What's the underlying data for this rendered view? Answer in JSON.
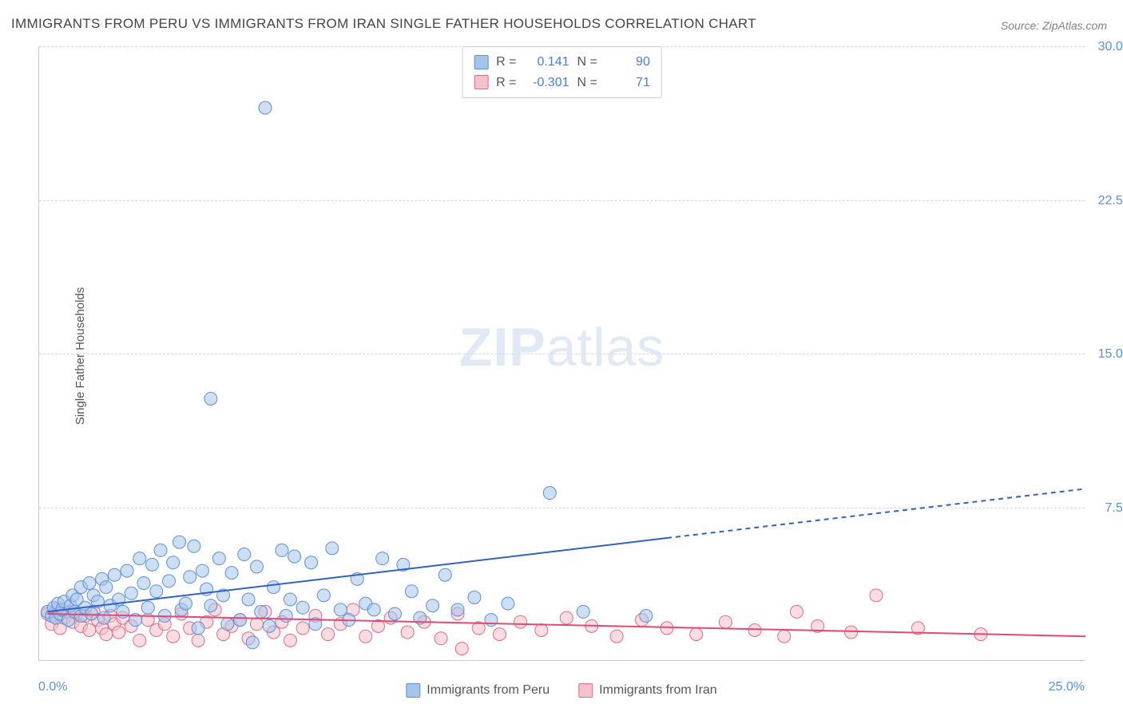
{
  "title": "IMMIGRANTS FROM PERU VS IMMIGRANTS FROM IRAN SINGLE FATHER HOUSEHOLDS CORRELATION CHART",
  "source": "Source: ZipAtlas.com",
  "watermark_a": "ZIP",
  "watermark_b": "atlas",
  "y_axis_title": "Single Father Households",
  "chart": {
    "type": "scatter",
    "background_color": "#ffffff",
    "grid_color": "#d8d8d8",
    "axis_color": "#c9c9c9",
    "xlim": [
      0,
      25
    ],
    "ylim": [
      0,
      30
    ],
    "x_tick_labels": {
      "min": "0.0%",
      "max": "25.0%"
    },
    "y_ticks": [
      7.5,
      15.0,
      22.5,
      30.0
    ],
    "y_tick_labels": [
      "7.5%",
      "15.0%",
      "22.5%",
      "30.0%"
    ],
    "tick_label_color": "#5b8fd6",
    "tick_label_fontsize": 16,
    "title_color": "#444444",
    "title_fontsize": 17,
    "marker_radius": 8,
    "marker_opacity": 0.55,
    "trend_line_width": 2,
    "dash_pattern": "6,5"
  },
  "series": [
    {
      "key": "peru",
      "label": "Immigrants from Peru",
      "fill_color": "#a6c4ea",
      "stroke_color": "#5b8fd6",
      "line_color": "#2e62c9",
      "R": "0.141",
      "N": "90",
      "trend": {
        "x1": 0.2,
        "y1": 2.4,
        "x2": 15.0,
        "y2": 6.0,
        "x2_dash": 25.0,
        "y2_dash": 8.4
      },
      "points": [
        [
          0.2,
          2.4
        ],
        [
          0.3,
          2.2
        ],
        [
          0.35,
          2.6
        ],
        [
          0.4,
          2.1
        ],
        [
          0.45,
          2.8
        ],
        [
          0.5,
          2.3
        ],
        [
          0.55,
          2.5
        ],
        [
          0.6,
          2.9
        ],
        [
          0.7,
          2.0
        ],
        [
          0.75,
          2.7
        ],
        [
          0.8,
          3.2
        ],
        [
          0.85,
          2.4
        ],
        [
          0.9,
          3.0
        ],
        [
          1.0,
          2.2
        ],
        [
          1.0,
          3.6
        ],
        [
          1.1,
          2.6
        ],
        [
          1.2,
          3.8
        ],
        [
          1.25,
          2.3
        ],
        [
          1.3,
          3.2
        ],
        [
          1.4,
          2.9
        ],
        [
          1.5,
          4.0
        ],
        [
          1.55,
          2.1
        ],
        [
          1.6,
          3.6
        ],
        [
          1.7,
          2.7
        ],
        [
          1.8,
          4.2
        ],
        [
          1.9,
          3.0
        ],
        [
          2.0,
          2.4
        ],
        [
          2.1,
          4.4
        ],
        [
          2.2,
          3.3
        ],
        [
          2.3,
          2.0
        ],
        [
          2.4,
          5.0
        ],
        [
          2.5,
          3.8
        ],
        [
          2.6,
          2.6
        ],
        [
          2.7,
          4.7
        ],
        [
          2.8,
          3.4
        ],
        [
          2.9,
          5.4
        ],
        [
          3.0,
          2.2
        ],
        [
          3.1,
          3.9
        ],
        [
          3.2,
          4.8
        ],
        [
          3.35,
          5.8
        ],
        [
          3.4,
          2.5
        ],
        [
          3.5,
          2.8
        ],
        [
          3.6,
          4.1
        ],
        [
          3.7,
          5.6
        ],
        [
          3.8,
          1.6
        ],
        [
          3.9,
          4.4
        ],
        [
          4.0,
          3.5
        ],
        [
          4.1,
          12.8
        ],
        [
          4.1,
          2.7
        ],
        [
          4.3,
          5.0
        ],
        [
          4.4,
          3.2
        ],
        [
          4.5,
          1.8
        ],
        [
          4.6,
          4.3
        ],
        [
          4.8,
          2.0
        ],
        [
          4.9,
          5.2
        ],
        [
          5.0,
          3.0
        ],
        [
          5.1,
          0.9
        ],
        [
          5.2,
          4.6
        ],
        [
          5.3,
          2.4
        ],
        [
          5.4,
          27.0
        ],
        [
          5.5,
          1.7
        ],
        [
          5.6,
          3.6
        ],
        [
          5.8,
          5.4
        ],
        [
          5.9,
          2.2
        ],
        [
          6.0,
          3.0
        ],
        [
          6.1,
          5.1
        ],
        [
          6.3,
          2.6
        ],
        [
          6.5,
          4.8
        ],
        [
          6.6,
          1.8
        ],
        [
          6.8,
          3.2
        ],
        [
          7.0,
          5.5
        ],
        [
          7.2,
          2.5
        ],
        [
          7.4,
          2.0
        ],
        [
          7.6,
          4.0
        ],
        [
          7.8,
          2.8
        ],
        [
          8.0,
          2.5
        ],
        [
          8.2,
          5.0
        ],
        [
          8.5,
          2.3
        ],
        [
          8.7,
          4.7
        ],
        [
          8.9,
          3.4
        ],
        [
          9.1,
          2.1
        ],
        [
          9.4,
          2.7
        ],
        [
          9.7,
          4.2
        ],
        [
          10.0,
          2.5
        ],
        [
          10.4,
          3.1
        ],
        [
          10.8,
          2.0
        ],
        [
          11.2,
          2.8
        ],
        [
          12.2,
          8.2
        ],
        [
          13.0,
          2.4
        ],
        [
          14.5,
          2.2
        ]
      ]
    },
    {
      "key": "iran",
      "label": "Immigrants from Iran",
      "fill_color": "#f4c1cc",
      "stroke_color": "#e06a86",
      "line_color": "#e24a74",
      "R": "-0.301",
      "N": "71",
      "trend": {
        "x1": 0.2,
        "y1": 2.3,
        "x2": 25.0,
        "y2": 1.2,
        "x2_dash": 25.0,
        "y2_dash": 1.2
      },
      "points": [
        [
          0.2,
          2.3
        ],
        [
          0.3,
          1.8
        ],
        [
          0.4,
          2.5
        ],
        [
          0.5,
          1.6
        ],
        [
          0.6,
          2.1
        ],
        [
          0.7,
          2.4
        ],
        [
          0.8,
          1.9
        ],
        [
          0.9,
          2.3
        ],
        [
          1.0,
          1.7
        ],
        [
          1.1,
          2.2
        ],
        [
          1.2,
          1.5
        ],
        [
          1.3,
          2.4
        ],
        [
          1.4,
          2.0
        ],
        [
          1.5,
          1.6
        ],
        [
          1.6,
          1.3
        ],
        [
          1.7,
          2.2
        ],
        [
          1.8,
          1.8
        ],
        [
          1.9,
          1.4
        ],
        [
          2.0,
          2.1
        ],
        [
          2.2,
          1.7
        ],
        [
          2.4,
          1.0
        ],
        [
          2.6,
          2.0
        ],
        [
          2.8,
          1.5
        ],
        [
          3.0,
          1.8
        ],
        [
          3.2,
          1.2
        ],
        [
          3.4,
          2.3
        ],
        [
          3.6,
          1.6
        ],
        [
          3.8,
          1.0
        ],
        [
          4.0,
          1.9
        ],
        [
          4.2,
          2.5
        ],
        [
          4.4,
          1.3
        ],
        [
          4.6,
          1.7
        ],
        [
          4.8,
          2.0
        ],
        [
          5.0,
          1.1
        ],
        [
          5.2,
          1.8
        ],
        [
          5.4,
          2.4
        ],
        [
          5.6,
          1.4
        ],
        [
          5.8,
          1.9
        ],
        [
          6.0,
          1.0
        ],
        [
          6.3,
          1.6
        ],
        [
          6.6,
          2.2
        ],
        [
          6.9,
          1.3
        ],
        [
          7.2,
          1.8
        ],
        [
          7.5,
          2.5
        ],
        [
          7.8,
          1.2
        ],
        [
          8.1,
          1.7
        ],
        [
          8.4,
          2.1
        ],
        [
          8.8,
          1.4
        ],
        [
          9.2,
          1.9
        ],
        [
          9.6,
          1.1
        ],
        [
          10.0,
          2.3
        ],
        [
          10.1,
          0.6
        ],
        [
          10.5,
          1.6
        ],
        [
          11.0,
          1.3
        ],
        [
          11.5,
          1.9
        ],
        [
          12.0,
          1.5
        ],
        [
          12.6,
          2.1
        ],
        [
          13.2,
          1.7
        ],
        [
          13.8,
          1.2
        ],
        [
          14.4,
          2.0
        ],
        [
          15.0,
          1.6
        ],
        [
          15.7,
          1.3
        ],
        [
          16.4,
          1.9
        ],
        [
          17.1,
          1.5
        ],
        [
          17.8,
          1.2
        ],
        [
          18.1,
          2.4
        ],
        [
          18.6,
          1.7
        ],
        [
          19.4,
          1.4
        ],
        [
          20.0,
          3.2
        ],
        [
          21.0,
          1.6
        ],
        [
          22.5,
          1.3
        ]
      ]
    }
  ],
  "stats_labels": {
    "R": "R =",
    "N": "N ="
  },
  "legend_labels": {
    "peru": "Immigrants from Peru",
    "iran": "Immigrants from Iran"
  }
}
